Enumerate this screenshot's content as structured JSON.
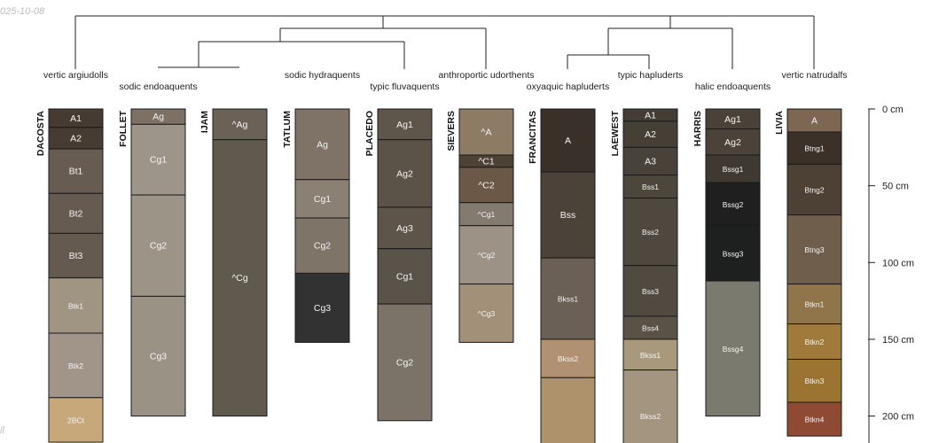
{
  "date_stamp": "025-10-08",
  "corner_mark": "ll",
  "depth_axis": {
    "max_cm": 220,
    "tick_labels": [
      "0 cm",
      "50 cm",
      "100 cm",
      "150 cm",
      "200 cm"
    ],
    "tick_values": [
      0,
      50,
      100,
      150,
      200
    ]
  },
  "profiles": [
    {
      "id": "DACOSTA",
      "taxon": "vertic argiudolls",
      "bottom": 217,
      "horizons": [
        {
          "name": "A1",
          "top": 0,
          "bottom": 12,
          "color": "#453b33"
        },
        {
          "name": "A2",
          "top": 12,
          "bottom": 26,
          "color": "#473c33"
        },
        {
          "name": "Bt1",
          "top": 26,
          "bottom": 55,
          "color": "#675c52"
        },
        {
          "name": "Bt2",
          "top": 55,
          "bottom": 81,
          "color": "#665b51"
        },
        {
          "name": "Bt3",
          "top": 81,
          "bottom": 110,
          "color": "#645a50"
        },
        {
          "name": "Btk1",
          "top": 110,
          "bottom": 146,
          "color": "#a09482"
        },
        {
          "name": "Btk2",
          "top": 146,
          "bottom": 188,
          "color": "#a1958a"
        },
        {
          "name": "2BCt",
          "top": 188,
          "bottom": 217,
          "color": "#c7a87b"
        }
      ]
    },
    {
      "id": "FOLLET",
      "taxon": "sodic endoaquents",
      "bottom": 200,
      "horizons": [
        {
          "name": "Ag",
          "top": 0,
          "bottom": 10,
          "color": "#7d7064"
        },
        {
          "name": "Cg1",
          "top": 10,
          "bottom": 56,
          "color": "#9e958a"
        },
        {
          "name": "Cg2",
          "top": 56,
          "bottom": 122,
          "color": "#9d9488"
        },
        {
          "name": "Cg3",
          "top": 122,
          "bottom": 200,
          "color": "#9b9286"
        }
      ]
    },
    {
      "id": "IJAM",
      "taxon": "",
      "bottom": 200,
      "horizons": [
        {
          "name": "^Ag",
          "top": 0,
          "bottom": 20,
          "color": "#6a6256"
        },
        {
          "name": "^Cg",
          "top": 20,
          "bottom": 200,
          "color": "#605a4e"
        }
      ]
    },
    {
      "id": "TATLUM",
      "taxon": "sodic hydraquents",
      "bottom": 152,
      "horizons": [
        {
          "name": "Ag",
          "top": 0,
          "bottom": 46,
          "color": "#7e7366"
        },
        {
          "name": "Cg1",
          "top": 46,
          "bottom": 71,
          "color": "#8a8074"
        },
        {
          "name": "Cg2",
          "top": 71,
          "bottom": 107,
          "color": "#7e7468"
        },
        {
          "name": "Cg3",
          "top": 107,
          "bottom": 152,
          "color": "#323233"
        }
      ]
    },
    {
      "id": "PLACEDO",
      "taxon": "typic fluvaquents",
      "bottom": 203,
      "horizons": [
        {
          "name": "Ag1",
          "top": 0,
          "bottom": 20,
          "color": "#5e564b"
        },
        {
          "name": "Ag2",
          "top": 20,
          "bottom": 64,
          "color": "#5b5348"
        },
        {
          "name": "Ag3",
          "top": 64,
          "bottom": 91,
          "color": "#5d554a"
        },
        {
          "name": "Cg1",
          "top": 91,
          "bottom": 127,
          "color": "#5a5349"
        },
        {
          "name": "Cg2",
          "top": 127,
          "bottom": 203,
          "color": "#7b7268"
        }
      ]
    },
    {
      "id": "SIEVERS",
      "taxon": "anthroportic udorthents",
      "bottom": 152,
      "horizons": [
        {
          "name": "^A",
          "top": 0,
          "bottom": 30,
          "color": "#8e7b66"
        },
        {
          "name": "^C1",
          "top": 30,
          "bottom": 38,
          "color": "#4d4236"
        },
        {
          "name": "^C2",
          "top": 38,
          "bottom": 61,
          "color": "#6b5846"
        },
        {
          "name": "^Cg1",
          "top": 61,
          "bottom": 76,
          "color": "#847b70"
        },
        {
          "name": "^Cg2",
          "top": 76,
          "bottom": 114,
          "color": "#9d9286"
        },
        {
          "name": "^Cg3",
          "top": 114,
          "bottom": 152,
          "color": "#a39078"
        }
      ]
    },
    {
      "id": "FRANCITAS",
      "taxon": "oxyaquic hapluderts",
      "bottom": 230,
      "horizons": [
        {
          "name": "A",
          "top": 0,
          "bottom": 41,
          "color": "#3a302a"
        },
        {
          "name": "Bss",
          "top": 41,
          "bottom": 97,
          "color": "#4b4239"
        },
        {
          "name": "Bkss1",
          "top": 97,
          "bottom": 150,
          "color": "#6b6055"
        },
        {
          "name": "Bkss2",
          "top": 150,
          "bottom": 175,
          "color": "#b09272"
        },
        {
          "name": "",
          "top": 175,
          "bottom": 230,
          "color": "#ad926c"
        }
      ]
    },
    {
      "id": "LAEWEST",
      "taxon": "typic hapluderts",
      "bottom": 230,
      "horizons": [
        {
          "name": "A1",
          "top": 0,
          "bottom": 8,
          "color": "#433d35"
        },
        {
          "name": "A2",
          "top": 8,
          "bottom": 25,
          "color": "#453f36"
        },
        {
          "name": "A3",
          "top": 25,
          "bottom": 43,
          "color": "#48423a"
        },
        {
          "name": "Bss1",
          "top": 43,
          "bottom": 58,
          "color": "#4c463c"
        },
        {
          "name": "Bss2",
          "top": 58,
          "bottom": 102,
          "color": "#4e483e"
        },
        {
          "name": "Bss3",
          "top": 102,
          "bottom": 135,
          "color": "#514a40"
        },
        {
          "name": "Bss4",
          "top": 135,
          "bottom": 150,
          "color": "#5a5247"
        },
        {
          "name": "Bkss1",
          "top": 150,
          "bottom": 170,
          "color": "#a8987c"
        },
        {
          "name": "Bkss2",
          "top": 170,
          "bottom": 230,
          "color": "#a39580"
        }
      ]
    },
    {
      "id": "HARRIS",
      "taxon": "halic endoaquents",
      "bottom": 200,
      "horizons": [
        {
          "name": "Ag1",
          "top": 0,
          "bottom": 13,
          "color": "#4a4238"
        },
        {
          "name": "Ag2",
          "top": 13,
          "bottom": 30,
          "color": "#4b433a"
        },
        {
          "name": "Bssg1",
          "top": 30,
          "bottom": 48,
          "color": "#3f3932"
        },
        {
          "name": "Bssg2",
          "top": 48,
          "bottom": 76,
          "color": "#1e1f1e"
        },
        {
          "name": "Bssg3",
          "top": 76,
          "bottom": 112,
          "color": "#1e1f1f"
        },
        {
          "name": "Bssg4",
          "top": 112,
          "bottom": 200,
          "color": "#7b7a6e"
        }
      ]
    },
    {
      "id": "LIVIA",
      "taxon": "vertic natrudalfs",
      "bottom": 213,
      "horizons": [
        {
          "name": "A",
          "top": 0,
          "bottom": 15,
          "color": "#7d6753"
        },
        {
          "name": "Btng1",
          "top": 15,
          "bottom": 36,
          "color": "#3c3129"
        },
        {
          "name": "Btng2",
          "top": 36,
          "bottom": 69,
          "color": "#4d4035"
        },
        {
          "name": "Btng3",
          "top": 69,
          "bottom": 114,
          "color": "#6f5e4b"
        },
        {
          "name": "Btkn1",
          "top": 114,
          "bottom": 140,
          "color": "#8f7549"
        },
        {
          "name": "Btkn2",
          "top": 140,
          "bottom": 163,
          "color": "#a07a3a"
        },
        {
          "name": "Btkn3",
          "top": 163,
          "bottom": 191,
          "color": "#9b7431"
        },
        {
          "name": "Btkn4",
          "top": 191,
          "bottom": 213,
          "color": "#8e4a32"
        }
      ]
    }
  ]
}
